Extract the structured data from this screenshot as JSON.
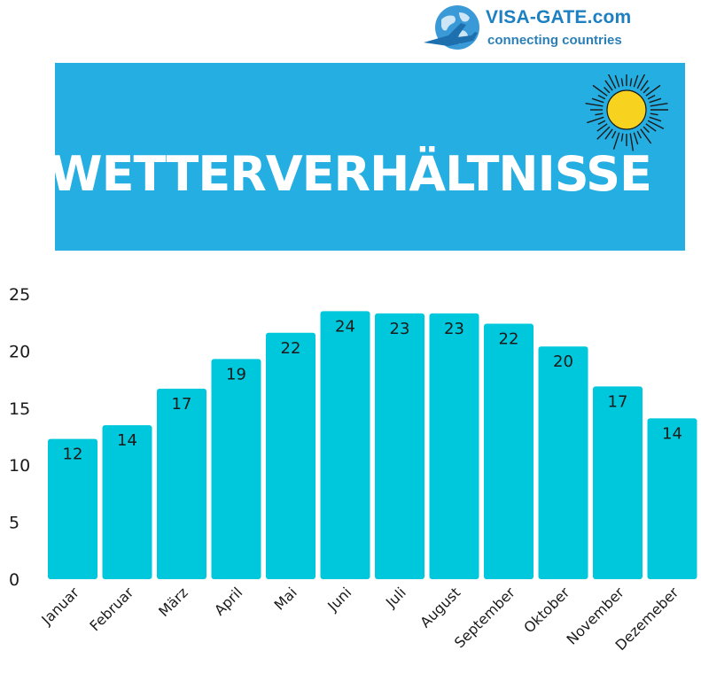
{
  "logo": {
    "brand": "VISA-GATE.com",
    "tagline": "connecting countries",
    "icon": "globe-airplane-icon",
    "colors": {
      "brand": "#1d80c3",
      "globe": "#3a9ad8"
    }
  },
  "banner": {
    "title": "WETTERVERHÄLTNISSE",
    "icon": "sun-icon",
    "colors": {
      "background": "#25aee2",
      "text": "#ffffff",
      "sun": "#f7d21e"
    }
  },
  "chart_data": {
    "type": "bar",
    "categories": [
      "Januar",
      "Februar",
      "März",
      "April",
      "Mai",
      "Juni",
      "Juli",
      "August",
      "September",
      "Oktober",
      "November",
      "Dezemeber"
    ],
    "values": [
      12.3,
      13.5,
      16.7,
      19.3,
      21.6,
      23.5,
      23.3,
      23.3,
      22.4,
      20.4,
      16.9,
      14.1
    ],
    "data_labels": [
      "12",
      "14",
      "17",
      "19",
      "22",
      "24",
      "23",
      "23",
      "22",
      "20",
      "17",
      "14"
    ],
    "yticks": [
      "0",
      "5",
      "10",
      "15",
      "20",
      "25"
    ],
    "ylim": [
      0,
      25
    ],
    "grid": false,
    "legend": "none",
    "title": "",
    "xlabel": "",
    "ylabel": "",
    "colors": {
      "bar": "#00c8dc",
      "text": "#1a1a1a"
    }
  }
}
